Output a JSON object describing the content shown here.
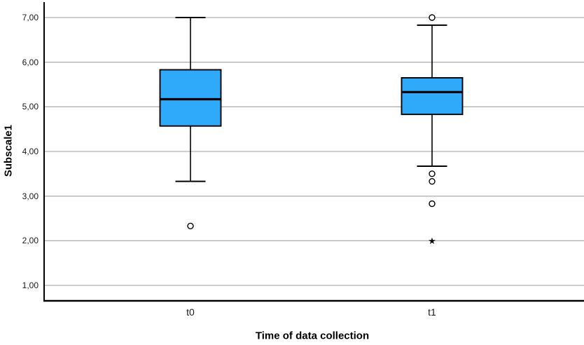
{
  "chart_data": {
    "type": "boxplot",
    "title": "",
    "xlabel": "Time of data collection",
    "ylabel": "Subscale1",
    "categories": [
      "t0",
      "t1"
    ],
    "ytick_labels": [
      "1,00",
      "2,00",
      "3,00",
      "4,00",
      "5,00",
      "6,00",
      "7,00"
    ],
    "ytick_values": [
      1,
      2,
      3,
      4,
      5,
      6,
      7
    ],
    "ylim": [
      0.65,
      7.35
    ],
    "decimal_separator": "comma",
    "grid": true,
    "grid_direction": "horizontal",
    "legend": "none",
    "series": [
      {
        "category": "t0",
        "whisker_low": 3.33,
        "q1": 4.57,
        "median": 5.17,
        "q3": 5.83,
        "whisker_high": 7.0,
        "outliers": [
          2.33
        ],
        "extremes": []
      },
      {
        "category": "t1",
        "whisker_low": 3.67,
        "q1": 4.83,
        "median": 5.33,
        "q3": 5.65,
        "whisker_high": 6.83,
        "outliers": [
          7.0,
          3.5,
          3.33,
          2.83
        ],
        "extremes": [
          2.0
        ]
      }
    ],
    "markers": {
      "outlier": "circle-outlier",
      "extreme": "star-extreme",
      "extreme_glyph": "★"
    },
    "colors": {
      "box_fill": "#2FA9FA",
      "box_stroke": "#000000",
      "median_stroke": "#000000",
      "whisker_stroke": "#000000",
      "gridline": "#B0B0B0",
      "axis": "#000000",
      "background": "#FFFFFF",
      "text": "#1A1A1A"
    }
  }
}
